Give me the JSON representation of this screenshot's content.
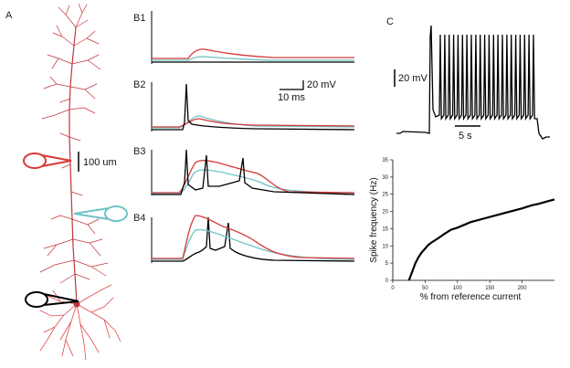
{
  "panels": {
    "A": {
      "label": "A",
      "scale_bar": "100 um"
    },
    "B1": {
      "label": "B1"
    },
    "B2": {
      "label": "B2",
      "scale_voltage": "20 mV",
      "scale_time": "10 ms"
    },
    "B3": {
      "label": "B3"
    },
    "B4": {
      "label": "B4"
    },
    "C": {
      "label": "C",
      "scale_voltage": "20 mV",
      "scale_time": "5 s"
    }
  },
  "colors": {
    "red": "#d8393a",
    "cyan": "#6fc3c7",
    "black": "#000000",
    "dendrite": "#c0353a"
  },
  "chart_data": {
    "type": "line",
    "title": "",
    "xlabel": "% from reference current",
    "ylabel": "Spike frequency (Hz)",
    "xlim": [
      0,
      250
    ],
    "ylim": [
      0,
      35
    ],
    "x_ticks": [
      "0",
      "50",
      "100",
      "150",
      "200"
    ],
    "y_ticks": [
      "0",
      "5",
      "10",
      "15",
      "20",
      "25",
      "30",
      "35"
    ],
    "series": [
      {
        "x": [
          25,
          30,
          35,
          40,
          45,
          50,
          55,
          60,
          70,
          80,
          90,
          100,
          110,
          120,
          140,
          160,
          180,
          200,
          215,
          225,
          240,
          250
        ],
        "y": [
          0,
          2.5,
          5,
          6.8,
          8.2,
          9.2,
          10.3,
          11,
          12.2,
          13.5,
          14.7,
          15.3,
          16.1,
          16.9,
          17.9,
          18.9,
          19.9,
          20.9,
          21.8,
          22.2,
          23,
          23.5
        ]
      }
    ]
  }
}
